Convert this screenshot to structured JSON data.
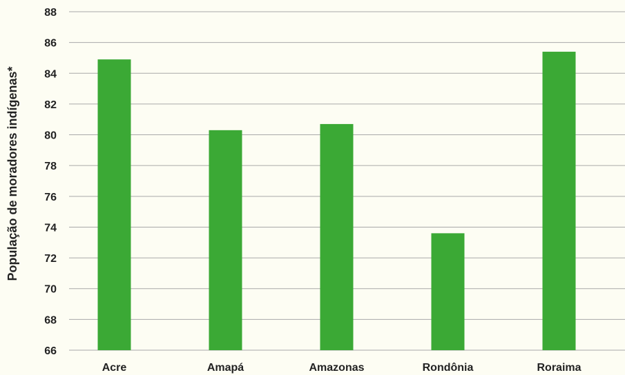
{
  "chart_data": {
    "type": "bar",
    "title": "",
    "xlabel": "",
    "ylabel": "População de moradores indígenas*",
    "categories": [
      "Acre",
      "Amapá",
      "Amazonas",
      "Rondônia",
      "Roraima"
    ],
    "values": [
      84.9,
      80.3,
      80.7,
      73.6,
      85.4
    ],
    "ylim": [
      66,
      88
    ],
    "yticks": [
      66,
      68,
      70,
      72,
      74,
      76,
      78,
      80,
      82,
      84,
      86,
      88
    ],
    "grid": true,
    "legend": "none",
    "colors": {
      "bar": "#3ba935",
      "grid": "#a8a8a8",
      "background": "#fdfdf3"
    }
  }
}
